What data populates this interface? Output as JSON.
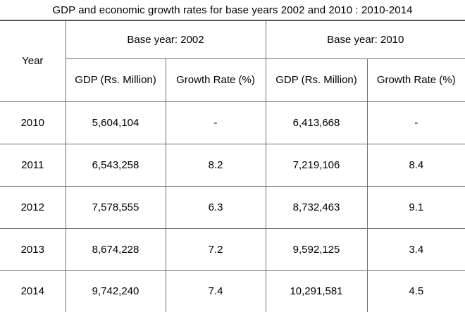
{
  "title": "GDP and economic growth rates for base years 2002 and 2010 : 2010-2014",
  "headers": {
    "year": "Year",
    "base_2002": "Base year: 2002",
    "base_2010": "Base year: 2010",
    "gdp_2002": "GDP (Rs. Million)",
    "growth_2002": "Growth Rate (%)",
    "gdp_2010": "GDP (Rs. Million)",
    "growth_2010": "Growth Rate (%)"
  },
  "rows": [
    {
      "year": "2010",
      "gdp_2002": "5,604,104",
      "growth_2002": "-",
      "gdp_2010": "6,413,668",
      "growth_2010": "-"
    },
    {
      "year": "2011",
      "gdp_2002": "6,543,258",
      "growth_2002": "8.2",
      "gdp_2010": "7,219,106",
      "growth_2010": "8.4"
    },
    {
      "year": "2012",
      "gdp_2002": "7,578,555",
      "growth_2002": "6.3",
      "gdp_2010": "8,732,463",
      "growth_2010": "9.1"
    },
    {
      "year": "2013",
      "gdp_2002": "8,674,228",
      "growth_2002": "7.2",
      "gdp_2010": "9,592,125",
      "growth_2010": "3.4"
    },
    {
      "year": "2014",
      "gdp_2002": "9,742,240",
      "growth_2002": "7.4",
      "gdp_2010": "10,291,581",
      "growth_2010": "4.5"
    }
  ],
  "colors": {
    "border": "#6f6f6f",
    "background": "#ffffff",
    "text": "#000000"
  }
}
